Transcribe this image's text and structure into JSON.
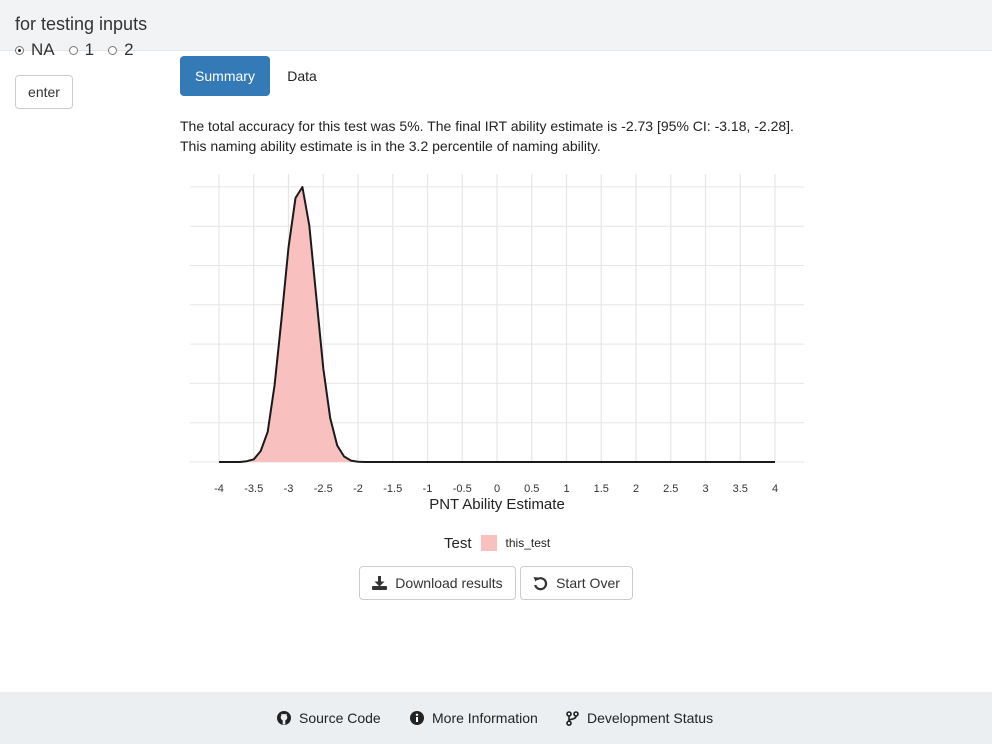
{
  "sidebar": {
    "title": "for testing inputs",
    "radio_options": [
      {
        "label": "NA",
        "selected": true
      },
      {
        "label": "1",
        "selected": false
      },
      {
        "label": "2",
        "selected": false
      }
    ],
    "enter_label": "enter"
  },
  "tabs": [
    {
      "label": "Summary",
      "active": true
    },
    {
      "label": "Data",
      "active": false
    }
  ],
  "summary": {
    "line1": "The total accuracy for this test was 5%. The final IRT ability estimate is -2.73 [95% CI: -3.18, -2.28].",
    "line2": "This naming ability estimate is in the 3.2 percentile of naming ability."
  },
  "chart_data": {
    "type": "area",
    "xlabel": "PNT Ability Estimate",
    "ylabel": "",
    "xlim": [
      -4,
      4
    ],
    "ylim": [
      0,
      1
    ],
    "x_ticks": [
      "-4",
      "-3.5",
      "-3",
      "-2.5",
      "-2",
      "-1.5",
      "-1",
      "-0.5",
      "0",
      "0.5",
      "1",
      "1.5",
      "2",
      "2.5",
      "3",
      "3.5",
      "4"
    ],
    "grid": true,
    "legend": {
      "title": "Test",
      "placement": "bottom"
    },
    "series": [
      {
        "name": "this_test",
        "fill": "#f8c0bf",
        "stroke": "#1a1a1a",
        "x": [
          -4,
          -3.7,
          -3.6,
          -3.5,
          -3.4,
          -3.3,
          -3.2,
          -3.1,
          -3.0,
          -2.9,
          -2.8,
          -2.7,
          -2.6,
          -2.5,
          -2.4,
          -2.3,
          -2.2,
          -2.1,
          -2.0,
          -1.9,
          4
        ],
        "y": [
          0,
          0,
          0.003,
          0.01,
          0.04,
          0.11,
          0.28,
          0.52,
          0.78,
          0.96,
          1.0,
          0.86,
          0.6,
          0.34,
          0.16,
          0.06,
          0.02,
          0.005,
          0.001,
          0,
          0
        ]
      }
    ]
  },
  "buttons": {
    "download": "Download results",
    "start_over": "Start Over"
  },
  "footer": {
    "source_code": "Source Code",
    "more_info": "More Information",
    "dev_status": "Development Status"
  }
}
